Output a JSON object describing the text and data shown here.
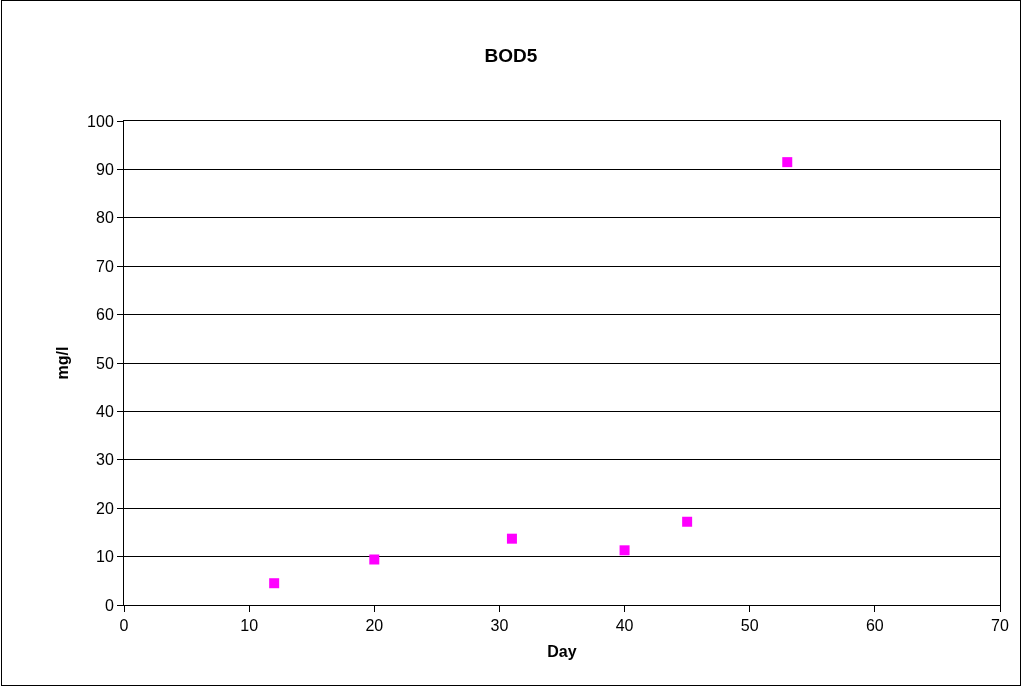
{
  "chart_data": {
    "type": "scatter",
    "title": "BOD5",
    "xlabel": "Day",
    "ylabel": "mg/l",
    "x": [
      12,
      20,
      31,
      40,
      45,
      53
    ],
    "series": [
      {
        "color": "#ff00ff",
        "values": [
          4.5,
          9.4,
          13.7,
          11.3,
          17.2,
          91.5
        ]
      }
    ],
    "xlim": [
      0,
      70
    ],
    "xticks": [
      0,
      10,
      20,
      30,
      40,
      50,
      60,
      70
    ],
    "ylim": [
      0,
      100
    ],
    "yticks": [
      0,
      10,
      20,
      30,
      40,
      50,
      60,
      70,
      80,
      90,
      100
    ],
    "grid": "y",
    "marker": "square"
  }
}
